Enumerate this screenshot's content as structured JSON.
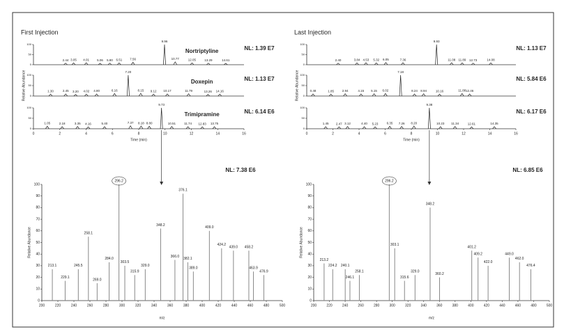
{
  "chart_data": [
    {
      "type": "chromatogram",
      "title": "First Injection",
      "label": "Nortriptyline",
      "nl": "NL: 1.39 E7",
      "xlim": [
        0,
        16
      ],
      "ylim": [
        0,
        100
      ],
      "yticks": [
        0,
        50,
        100
      ],
      "x": [
        2.44,
        3.05,
        4.01,
        5.06,
        5.8,
        6.51,
        7.56,
        9.96,
        10.77,
        12.05,
        13.29,
        14.61
      ],
      "values": [
        8,
        9,
        10,
        7,
        8,
        9,
        12,
        100,
        14,
        9,
        8,
        7
      ],
      "peak_labels": [
        "2.44",
        "3.05",
        "4.01",
        "5.06",
        "5.80",
        "6.51",
        "7.56",
        "9.96",
        "10.77",
        "12.05",
        "13.29",
        "14.61"
      ]
    },
    {
      "type": "chromatogram",
      "label": "Doxepin",
      "nl": "NL: 1.13 E7",
      "ylabel": "Relative Abundance",
      "xlim": [
        0,
        16
      ],
      "ylim": [
        0,
        100
      ],
      "yticks": [
        0,
        50,
        100
      ],
      "x": [
        1.3,
        2.45,
        3.2,
        4.02,
        4.8,
        6.16,
        7.2,
        8.15,
        9.12,
        10.17,
        11.79,
        13.26,
        14.16
      ],
      "values": [
        9,
        10,
        8,
        9,
        10,
        12,
        100,
        13,
        9,
        10,
        11,
        8,
        9
      ],
      "peak_labels": [
        "1.30",
        "2.45",
        "3.20",
        "4.02",
        "4.80",
        "6.16",
        "7.20",
        "8.15",
        "9.12",
        "10.17",
        "11.79",
        "13.26",
        "14.16"
      ]
    },
    {
      "type": "chromatogram",
      "label": "Trimipramine",
      "nl": "NL: 6.14 E6",
      "xlabel": "Time (min)",
      "xlim": [
        0,
        16
      ],
      "ylim": [
        0,
        100
      ],
      "yticks": [
        0,
        50,
        100
      ],
      "xticks": [
        0,
        2,
        4,
        6,
        8,
        10,
        12,
        14,
        16
      ],
      "x": [
        1.05,
        2.18,
        3.35,
        4.16,
        5.4,
        7.37,
        8.18,
        8.8,
        9.73,
        10.51,
        11.74,
        12.83,
        13.75
      ],
      "values": [
        12,
        10,
        11,
        9,
        10,
        14,
        13,
        12,
        100,
        11,
        10,
        9,
        10
      ],
      "peak_labels": [
        "1.05",
        "2.18",
        "3.35",
        "4.16",
        "5.40",
        "7.37",
        "8.18",
        "8.80",
        "9.73",
        "10.51",
        "11.74",
        "12.83",
        "13.75"
      ]
    },
    {
      "type": "spectrum",
      "nl": "NL: 7.38 E6",
      "xlabel": "m/z",
      "ylabel": "Relative Abundance",
      "highlight": 6,
      "xlim": [
        200,
        500
      ],
      "ylim": [
        0,
        100
      ],
      "xticks": [
        200,
        220,
        240,
        260,
        280,
        300,
        320,
        340,
        360,
        380,
        400,
        420,
        440,
        460,
        480,
        500
      ],
      "yticks": [
        0,
        10,
        20,
        30,
        40,
        50,
        60,
        70,
        80,
        90,
        100
      ],
      "x": [
        213.1,
        229.1,
        245.5,
        258.1,
        269.0,
        284.0,
        296.2,
        303.5,
        315.9,
        329.0,
        348.2,
        366.0,
        376.1,
        382.1,
        389.0,
        409.0,
        424.2,
        439.0,
        458.2,
        463.9,
        476.9
      ],
      "values": [
        27,
        17,
        27,
        55,
        15,
        33,
        100,
        30,
        22,
        27,
        62,
        35,
        92,
        33,
        25,
        60,
        45,
        43,
        43,
        25,
        22
      ],
      "peak_labels": [
        "213.1",
        "229.1",
        "245.5",
        "258.1",
        "269.0",
        "284.0",
        "296.2",
        "303.5",
        "315.9",
        "329.0",
        "348.2",
        "366.0",
        "376.1",
        "382.1",
        "389.0",
        "409.0",
        "424.2",
        "439.0",
        "458.2",
        "463.9",
        "476.9"
      ]
    },
    {
      "type": "chromatogram",
      "title": "Last Injection",
      "nl": "NL: 1.13 E7",
      "xlim": [
        0,
        16
      ],
      "ylim": [
        0,
        100
      ],
      "yticks": [
        0,
        50,
        100
      ],
      "x": [
        2.4,
        3.84,
        4.53,
        5.32,
        6.05,
        7.36,
        9.93,
        11.08,
        11.89,
        12.73,
        14.08
      ],
      "values": [
        8,
        9,
        10,
        9,
        11,
        10,
        100,
        10,
        9,
        8,
        9
      ],
      "peak_labels": [
        "2.40",
        "3.84",
        "4.53",
        "5.32",
        "6.05",
        "7.36",
        "9.93",
        "11.08",
        "11.89",
        "12.73",
        "14.08"
      ]
    },
    {
      "type": "chromatogram",
      "nl": "NL: 5.84 E6",
      "ylabel": "Relative Abundance",
      "xlim": [
        0,
        16
      ],
      "ylim": [
        0,
        100
      ],
      "yticks": [
        0,
        50,
        100
      ],
      "x": [
        0.48,
        1.85,
        2.94,
        4.15,
        5.15,
        6.02,
        7.18,
        8.24,
        8.94,
        10.16,
        11.88,
        12.46
      ],
      "values": [
        10,
        9,
        11,
        10,
        11,
        12,
        100,
        10,
        11,
        9,
        12,
        10
      ],
      "peak_labels": [
        "0.48",
        "1.85",
        "2.94",
        "4.15",
        "5.15",
        "6.02",
        "7.18",
        "8.24",
        "8.94",
        "10.16",
        "11.88",
        "12.46"
      ]
    },
    {
      "type": "chromatogram",
      "nl": "NL: 6.17 E6",
      "xlabel": "Time (min)",
      "xlim": [
        0,
        16
      ],
      "ylim": [
        0,
        100
      ],
      "yticks": [
        0,
        50,
        100
      ],
      "xticks": [
        0,
        2,
        4,
        6,
        8,
        10,
        12,
        14,
        16
      ],
      "x": [
        1.45,
        2.47,
        3.12,
        4.4,
        5.23,
        6.35,
        7.26,
        8.2,
        9.38,
        10.23,
        11.34,
        12.61,
        14.35
      ],
      "values": [
        10,
        9,
        11,
        10,
        9,
        12,
        11,
        13,
        100,
        10,
        11,
        9,
        10
      ],
      "peak_labels": [
        "1.45",
        "2.47",
        "3.12",
        "4.40",
        "5.23",
        "6.35",
        "7.26",
        "8.20",
        "9.38",
        "10.23",
        "11.34",
        "12.61",
        "14.35"
      ]
    },
    {
      "type": "spectrum",
      "nl": "NL: 6.85 E6",
      "xlabel": "m/z",
      "ylabel": "Relative Abundance",
      "highlight": 5,
      "xlim": [
        200,
        500
      ],
      "ylim": [
        0,
        100
      ],
      "xticks": [
        200,
        220,
        240,
        260,
        280,
        300,
        320,
        340,
        360,
        380,
        400,
        420,
        440,
        460,
        480,
        500
      ],
      "yticks": [
        0,
        10,
        20,
        30,
        40,
        50,
        60,
        70,
        80,
        90,
        100
      ],
      "x": [
        213.2,
        224.2,
        240.1,
        246.1,
        258.1,
        296.2,
        303.1,
        315.6,
        329.0,
        348.2,
        360.2,
        401.2,
        409.2,
        422.0,
        449.0,
        462.0,
        476.4
      ],
      "values": [
        32,
        27,
        27,
        17,
        22,
        100,
        45,
        17,
        22,
        80,
        20,
        43,
        37,
        30,
        37,
        33,
        27
      ],
      "peak_labels": [
        "213.2",
        "224.2",
        "240.1",
        "246.1",
        "258.1",
        "296.2",
        "303.1",
        "315.6",
        "329.0",
        "348.2",
        "360.2",
        "401.2",
        "409.2",
        "422.0",
        "449.0",
        "462.0",
        "476.4"
      ]
    }
  ]
}
